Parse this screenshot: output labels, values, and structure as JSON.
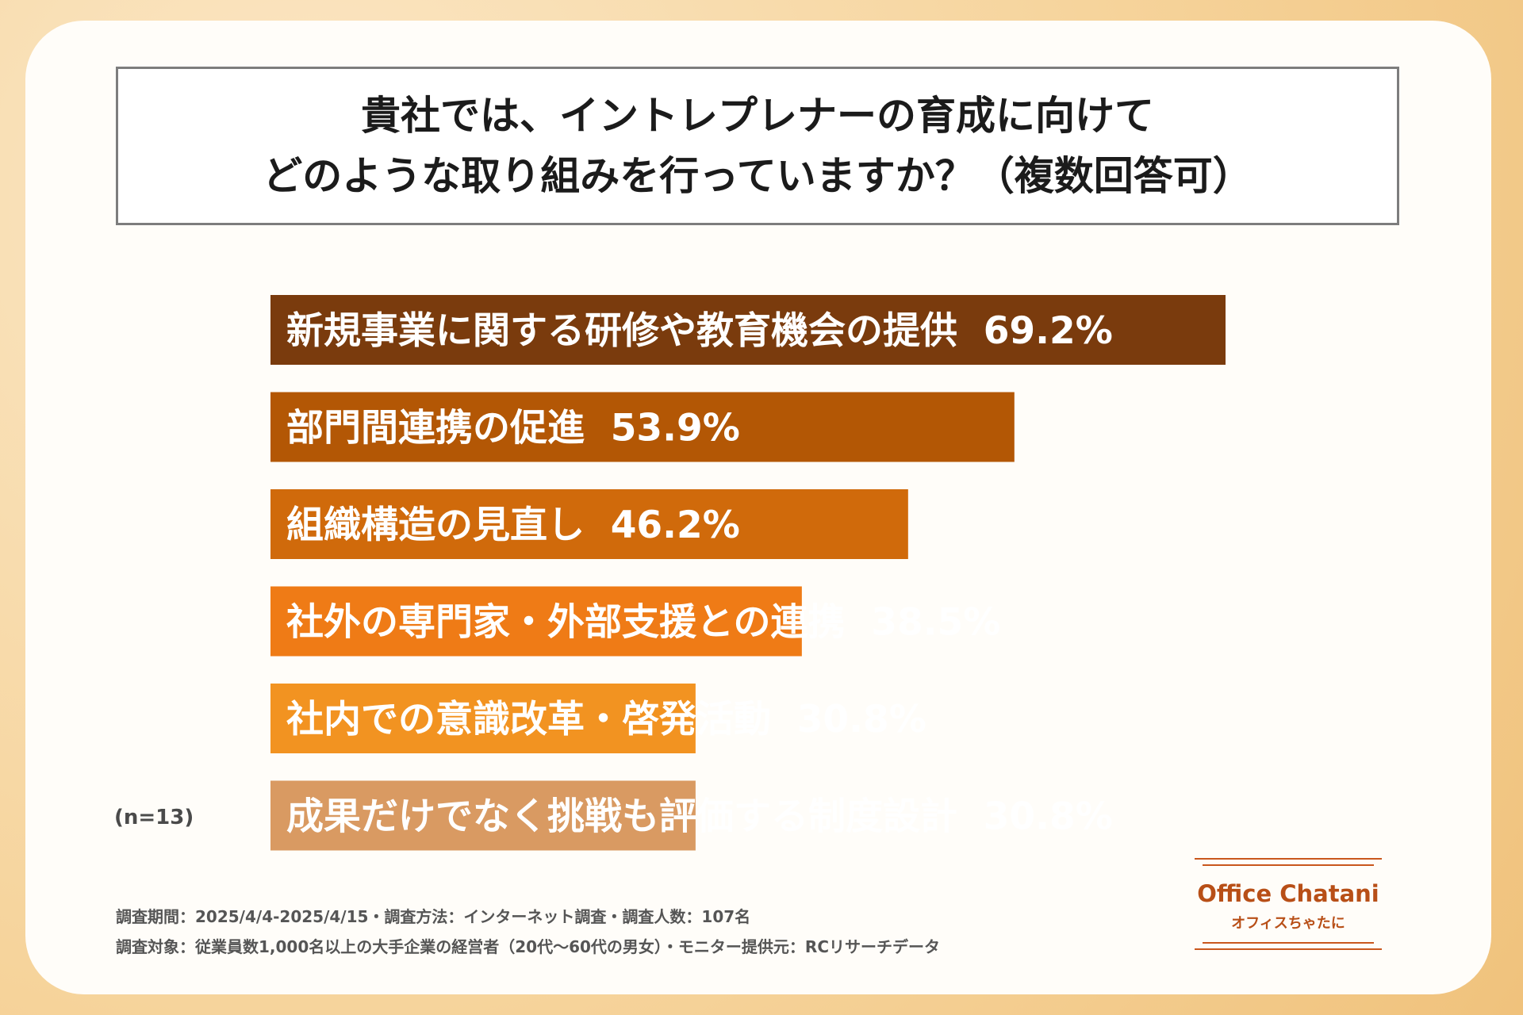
{
  "chart_data": {
    "type": "bar",
    "orientation": "horizontal",
    "title": [
      "貴社では、イントレプレナーの育成に向けて",
      "どのような取り組みを行っていますか？（複数回答可）"
    ],
    "categories": [
      "新規事業に関する研修や教育機会の提供",
      "部門間連携の促進",
      "組織構造の見直し",
      "社外の専門家・外部支援との連携",
      "社内での意識改革・啓発活動",
      "成果だけでなく挑戦も評価する制度設計"
    ],
    "values": [
      69.2,
      53.9,
      46.2,
      38.5,
      30.8,
      30.8
    ],
    "value_labels": [
      "69.2%",
      "53.9%",
      "46.2%",
      "38.5%",
      "30.8%",
      "30.8%"
    ],
    "colors": [
      "#7a3b0d",
      "#b35705",
      "#d06a0b",
      "#ef7b16",
      "#f29321",
      "#d99a62"
    ],
    "xlim": [
      0,
      69.2
    ],
    "sample_note": "(n=13)",
    "grid": false,
    "legend": "none"
  },
  "footnotes": [
    "調査期間：2025/4/4-2025/4/15・調査方法：インターネット調査・調査人数：107名",
    "調査対象：従業員数1,000名以上の大手企業の経営者（20代～60代の男女）・モニター提供元：RCリサーチデータ"
  ],
  "logo": {
    "main": "Office Chatani",
    "sub": "オフィスちゃたに"
  }
}
